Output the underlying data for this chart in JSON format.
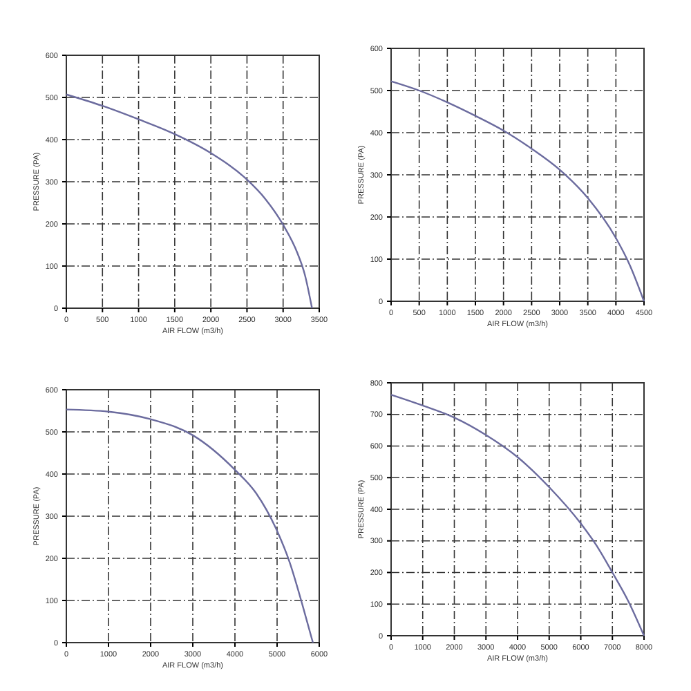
{
  "chart_data": [
    {
      "type": "line",
      "xlabel": "AIR FLOW (m3/h)",
      "ylabel": "PRESSURE (PA)",
      "xlim": [
        0,
        3500
      ],
      "xticks": [
        0,
        500,
        1000,
        1500,
        2000,
        2500,
        3000,
        3500
      ],
      "ylim": [
        0,
        600
      ],
      "yticks": [
        0,
        100,
        200,
        300,
        400,
        500,
        600
      ],
      "grid": true,
      "marker": "none",
      "line_style": "solid",
      "series": [
        {
          "color": "#6b6b9e",
          "x": [
            0,
            500,
            1000,
            1500,
            2000,
            2500,
            2750,
            3000,
            3200,
            3300,
            3400
          ],
          "values": [
            507,
            480,
            448,
            413,
            368,
            305,
            260,
            198,
            130,
            80,
            0
          ]
        }
      ]
    },
    {
      "type": "line",
      "xlabel": "AIR FLOW (m3/h)",
      "ylabel": "PRESSURE (PA)",
      "xlim": [
        0,
        4500
      ],
      "xticks": [
        0,
        500,
        1000,
        1500,
        2000,
        2500,
        3000,
        3500,
        4000,
        4500
      ],
      "ylim": [
        0,
        600
      ],
      "yticks": [
        0,
        100,
        200,
        300,
        400,
        500,
        600
      ],
      "grid": true,
      "marker": "none",
      "line_style": "solid",
      "series": [
        {
          "color": "#6b6b9e",
          "x": [
            0,
            500,
            1000,
            1500,
            2000,
            2500,
            3000,
            3500,
            4000,
            4250,
            4500
          ],
          "values": [
            522,
            500,
            472,
            440,
            405,
            362,
            312,
            245,
            150,
            85,
            0
          ]
        }
      ]
    },
    {
      "type": "line",
      "xlabel": "AIR FLOW (m3/h)",
      "ylabel": "PRESSURE (PA)",
      "xlim": [
        0,
        6000
      ],
      "xticks": [
        0,
        1000,
        2000,
        3000,
        4000,
        5000,
        6000
      ],
      "ylim": [
        0,
        600
      ],
      "yticks": [
        0,
        100,
        200,
        300,
        400,
        500,
        600
      ],
      "grid": true,
      "marker": "none",
      "line_style": "solid",
      "series": [
        {
          "color": "#6b6b9e",
          "x": [
            0,
            1000,
            2000,
            3000,
            4000,
            4500,
            5000,
            5300,
            5600,
            5850
          ],
          "values": [
            553,
            548,
            530,
            492,
            410,
            355,
            265,
            190,
            90,
            0
          ]
        }
      ]
    },
    {
      "type": "line",
      "xlabel": "AIR FLOW (m3/h)",
      "ylabel": "PRESSURE (PA)",
      "xlim": [
        0,
        8000
      ],
      "xticks": [
        0,
        1000,
        2000,
        3000,
        4000,
        5000,
        6000,
        7000,
        8000
      ],
      "ylim": [
        0,
        800
      ],
      "yticks": [
        0,
        100,
        200,
        300,
        400,
        500,
        600,
        700,
        800
      ],
      "grid": true,
      "marker": "none",
      "line_style": "solid",
      "series": [
        {
          "color": "#6b6b9e",
          "x": [
            0,
            1000,
            2000,
            3000,
            4000,
            5000,
            6000,
            6500,
            7000,
            7500,
            8000
          ],
          "values": [
            762,
            728,
            690,
            635,
            565,
            470,
            355,
            285,
            200,
            110,
            0
          ]
        }
      ]
    }
  ]
}
